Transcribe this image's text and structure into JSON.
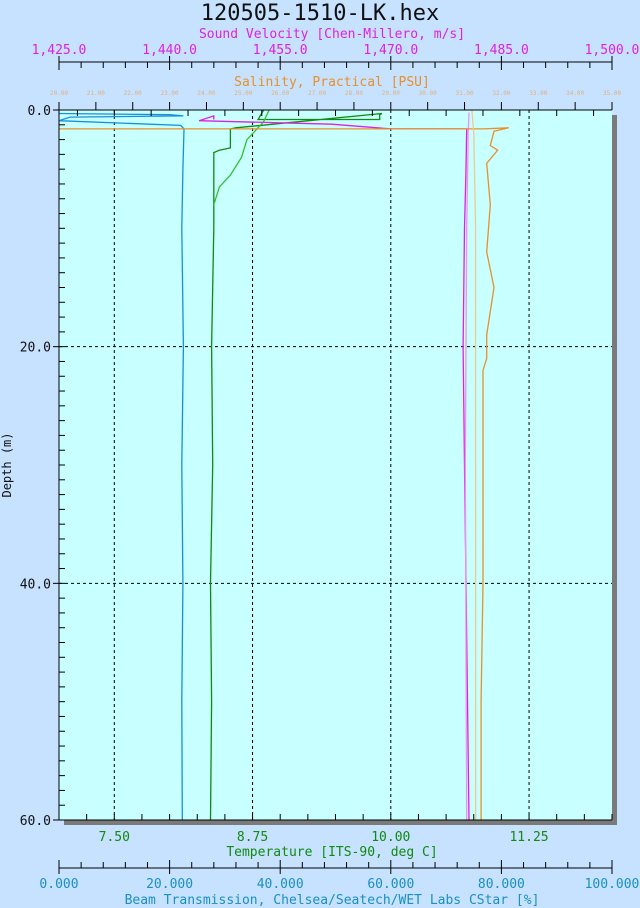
{
  "chart_data": {
    "type": "line",
    "title": "120505-1510-LK.hex",
    "y_axis": {
      "label": "Depth (m)",
      "range": [
        0,
        60
      ],
      "inverted": true,
      "ticks": [
        "0.0",
        "20.0",
        "40.0",
        "60.0"
      ],
      "tick_values": [
        0,
        20,
        40,
        60
      ]
    },
    "x_axes": [
      {
        "id": "sv",
        "label": "Sound Velocity [Chen-Millero, m/s]",
        "position": "top",
        "range": [
          1425,
          1500
        ],
        "ticks": [
          "1,425.0",
          "1,440.0",
          "1,455.0",
          "1,470.0",
          "1,485.0",
          "1,500.0"
        ],
        "tick_values": [
          1425,
          1440,
          1455,
          1470,
          1485,
          1500
        ],
        "color": "#e020e0"
      },
      {
        "id": "sal",
        "label": "Salinity, Practical [PSU]",
        "position": "top",
        "range": [
          20,
          35
        ],
        "ticks": [
          "20.00",
          "21.00",
          "22.00",
          "23.00",
          "24.00",
          "25.00",
          "26.00",
          "27.00",
          "28.00",
          "29.00",
          "30.00",
          "31.00",
          "32.00",
          "33.00",
          "34.00",
          "35.00"
        ],
        "tick_values": [
          20,
          21,
          22,
          23,
          24,
          25,
          26,
          27,
          28,
          29,
          30,
          31,
          32,
          33,
          34,
          35
        ],
        "color": "#e8902a"
      },
      {
        "id": "temp",
        "label": "Temperature [ITS-90, deg C]",
        "position": "bottom",
        "range": [
          7.0,
          12.0
        ],
        "ticks": [
          "7.50",
          "8.75",
          "10.00",
          "11.25"
        ],
        "tick_values": [
          7.5,
          8.75,
          10.0,
          11.25
        ],
        "color": "#108a10"
      },
      {
        "id": "beam",
        "label": "Beam Transmission, Chelsea/Seatech/WET Labs CStar [%]",
        "position": "bottom",
        "range": [
          0,
          100
        ],
        "ticks": [
          "0.000",
          "20.000",
          "40.000",
          "60.000",
          "80.000",
          "100.000"
        ],
        "tick_values": [
          0,
          20,
          40,
          60,
          80,
          100
        ],
        "color": "#1a8fc0"
      }
    ],
    "grid": true,
    "series": [
      {
        "axis": "beam",
        "color": "#1a8fd8",
        "points": [
          [
            0,
            0.3
          ],
          [
            20,
            0.4
          ],
          [
            22.5,
            0.5
          ],
          [
            2,
            0.6
          ],
          [
            0,
            0.9
          ],
          [
            22,
            1.3
          ],
          [
            22.6,
            1.6
          ],
          [
            22.4,
            5
          ],
          [
            22.2,
            10
          ],
          [
            22.5,
            20
          ],
          [
            22.2,
            30
          ],
          [
            22.4,
            40
          ],
          [
            22.2,
            50
          ],
          [
            22.3,
            60
          ]
        ]
      },
      {
        "axis": "temp",
        "color": "#108a10",
        "points": [
          [
            8.85,
            0.0
          ],
          [
            8.8,
            0.8
          ],
          [
            9.9,
            0.8
          ],
          [
            9.9,
            0.4
          ],
          [
            9.92,
            0.3
          ],
          [
            8.6,
            1.5
          ],
          [
            8.55,
            1.6
          ],
          [
            8.55,
            3.2
          ],
          [
            8.45,
            3.4
          ],
          [
            8.4,
            3.6
          ],
          [
            8.4,
            10
          ],
          [
            8.38,
            20
          ],
          [
            8.39,
            30
          ],
          [
            8.37,
            40
          ],
          [
            8.38,
            50
          ],
          [
            8.37,
            60
          ]
        ]
      },
      {
        "axis": "temp",
        "color": "#30c030",
        "points": [
          [
            8.9,
            0.0
          ],
          [
            8.85,
            1.0
          ],
          [
            8.7,
            2.5
          ],
          [
            8.65,
            4.0
          ],
          [
            8.55,
            5.5
          ],
          [
            8.45,
            6.5
          ],
          [
            8.4,
            8
          ]
        ]
      },
      {
        "axis": "sv",
        "color": "#e020e0",
        "points": [
          [
            1446,
            0.8
          ],
          [
            1446,
            0.5
          ],
          [
            1444,
            0.9
          ],
          [
            1462,
            1.2
          ],
          [
            1470,
            1.6
          ],
          [
            1480.3,
            1.6
          ],
          [
            1480.2,
            5
          ],
          [
            1480,
            10
          ],
          [
            1479.8,
            20
          ],
          [
            1480,
            30
          ],
          [
            1480.2,
            40
          ],
          [
            1480.4,
            50
          ],
          [
            1480.6,
            60
          ]
        ]
      },
      {
        "axis": "sv",
        "color": "#f090f0",
        "points": [
          [
            1480.6,
            0.2
          ],
          [
            1480.5,
            2
          ],
          [
            1480.3,
            10
          ],
          [
            1480.1,
            30
          ],
          [
            1480.3,
            60
          ]
        ]
      },
      {
        "axis": "sal",
        "color": "#e8902a",
        "points": [
          [
            20,
            1.6
          ],
          [
            28,
            1.6
          ],
          [
            31.5,
            1.6
          ],
          [
            32.2,
            1.5
          ],
          [
            31.8,
            1.8
          ],
          [
            31.7,
            3
          ],
          [
            31.9,
            3.4
          ],
          [
            31.6,
            4.5
          ],
          [
            31.7,
            8
          ],
          [
            31.6,
            12
          ],
          [
            31.8,
            15
          ],
          [
            31.6,
            19
          ],
          [
            31.6,
            21
          ],
          [
            31.5,
            22
          ],
          [
            31.5,
            30
          ],
          [
            31.5,
            40
          ],
          [
            31.45,
            50
          ],
          [
            31.45,
            60
          ]
        ]
      },
      {
        "axis": "sal",
        "color": "#f0c890",
        "points": [
          [
            31.2,
            0.0
          ],
          [
            31.25,
            2
          ],
          [
            31.3,
            10
          ],
          [
            31.3,
            30
          ],
          [
            31.3,
            60
          ]
        ]
      }
    ]
  }
}
